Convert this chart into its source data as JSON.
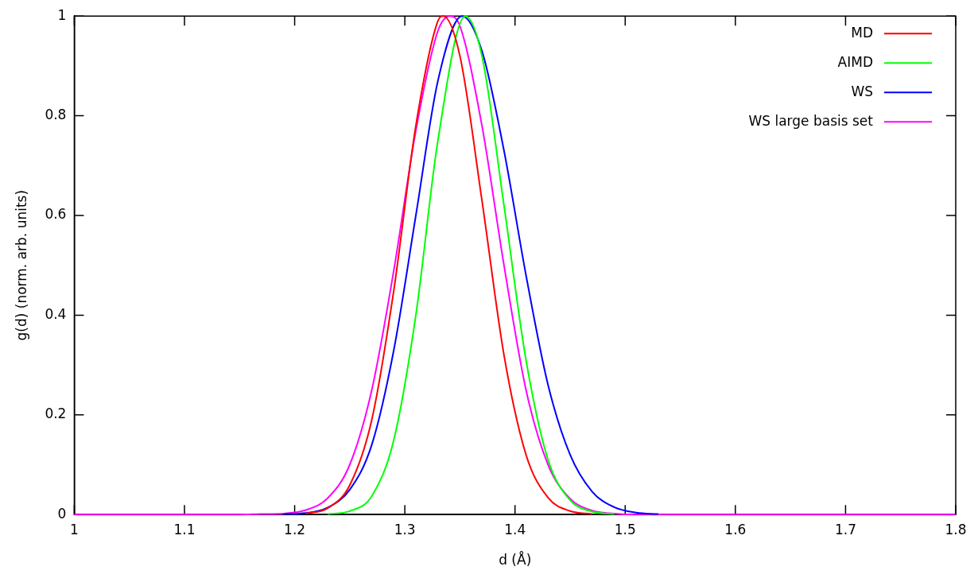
{
  "chart_data": {
    "type": "line",
    "xlabel": "d (Å)",
    "ylabel": "g(d) (norm. arb. units)",
    "xlim": [
      1,
      1.8
    ],
    "xticks": [
      1,
      1.1,
      1.2,
      1.3,
      1.4,
      1.5,
      1.6,
      1.7,
      1.8
    ],
    "ylim": [
      0,
      1
    ],
    "yticks": [
      0,
      0.2,
      0.4,
      0.6,
      0.8,
      1
    ],
    "grid": false,
    "legend": "top right",
    "marker": "none",
    "line_style": "solid",
    "series": [
      {
        "name": "MD",
        "color": "#ff0000",
        "x": [
          1.21,
          1.23,
          1.25,
          1.27,
          1.29,
          1.31,
          1.33,
          1.335,
          1.35,
          1.37,
          1.39,
          1.41,
          1.43,
          1.45,
          1.47
        ],
        "values": [
          0.002,
          0.013,
          0.059,
          0.19,
          0.45,
          0.78,
          0.99,
          1,
          0.92,
          0.63,
          0.32,
          0.12,
          0.034,
          0.007,
          0.001
        ]
      },
      {
        "name": "AIMD",
        "color": "#00ff00",
        "x": [
          1.23,
          1.25,
          1.27,
          1.29,
          1.31,
          1.33,
          1.355,
          1.37,
          1.39,
          1.41,
          1.43,
          1.45,
          1.47,
          1.49
        ],
        "values": [
          0.001,
          0.007,
          0.037,
          0.15,
          0.4,
          0.75,
          1,
          0.92,
          0.62,
          0.31,
          0.11,
          0.029,
          0.006,
          0.001
        ]
      },
      {
        "name": "WS",
        "color": "#0000ff",
        "x": [
          1.19,
          1.21,
          1.23,
          1.25,
          1.27,
          1.29,
          1.31,
          1.33,
          1.352,
          1.37,
          1.39,
          1.41,
          1.43,
          1.45,
          1.47,
          1.49,
          1.51,
          1.53
        ],
        "values": [
          0.001,
          0.003,
          0.014,
          0.05,
          0.14,
          0.33,
          0.6,
          0.87,
          1,
          0.93,
          0.73,
          0.48,
          0.26,
          0.12,
          0.046,
          0.015,
          0.004,
          0.001
        ]
      },
      {
        "name": "WS large basis set",
        "color": "#ff00ff",
        "x": [
          1,
          1.15,
          1.17,
          1.19,
          1.21,
          1.23,
          1.25,
          1.27,
          1.29,
          1.31,
          1.33,
          1.341,
          1.35,
          1.37,
          1.39,
          1.41,
          1.43,
          1.45,
          1.47,
          1.49,
          1.51,
          1.8
        ],
        "values": [
          0,
          0,
          0.001,
          0.002,
          0.009,
          0.033,
          0.1,
          0.25,
          0.49,
          0.77,
          0.97,
          1,
          0.98,
          0.78,
          0.5,
          0.25,
          0.1,
          0.032,
          0.008,
          0.002,
          0,
          0
        ]
      }
    ]
  }
}
